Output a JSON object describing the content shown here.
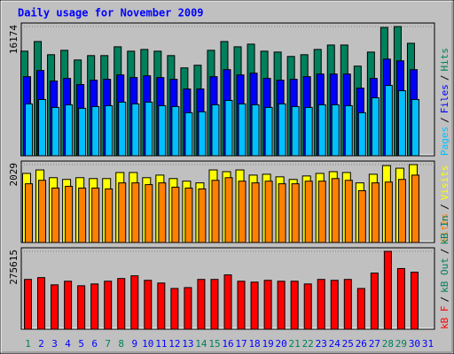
{
  "chart_data": [
    {
      "type": "bar",
      "title": "Daily usage for November 2009",
      "separator": "/",
      "ylim": [
        0,
        16174
      ],
      "yticks": [
        16174
      ],
      "series": [
        {
          "name": "Hits",
          "color": "#00805c",
          "values": [
            13090,
            14300,
            12650,
            13200,
            11990,
            12540,
            12540,
            13640,
            13090,
            13310,
            13090,
            12540,
            11000,
            11330,
            13200,
            14300,
            13640,
            13970,
            13090,
            12980,
            12430,
            12650,
            13310,
            13860,
            13860,
            11220,
            12980,
            16060,
            16174,
            14080,
            null
          ]
        },
        {
          "name": "Files",
          "color": "#0000ff",
          "values": [
            9900,
            10670,
            9350,
            9680,
            8910,
            9460,
            9570,
            10120,
            9790,
            10010,
            9790,
            9570,
            8360,
            8360,
            9900,
            10780,
            10120,
            10340,
            9680,
            9460,
            9570,
            9900,
            10230,
            10230,
            10230,
            8470,
            9680,
            12100,
            11880,
            10780,
            null
          ]
        },
        {
          "name": "Pages",
          "color": "#00c0ff",
          "values": [
            6490,
            7040,
            6050,
            6380,
            5940,
            6160,
            6270,
            6710,
            6490,
            6710,
            6270,
            6160,
            5390,
            5500,
            6380,
            6930,
            6490,
            6380,
            6050,
            6490,
            6160,
            6050,
            6380,
            6380,
            6270,
            5390,
            7260,
            8800,
            8140,
            7040,
            null
          ]
        }
      ]
    },
    {
      "type": "bar",
      "ylim": [
        0,
        2029
      ],
      "yticks": [
        2029
      ],
      "series": [
        {
          "name": "Visits",
          "color": "#ffff00",
          "values": [
            1800,
            1890,
            1688,
            1643,
            1688,
            1665,
            1665,
            1823,
            1823,
            1688,
            1755,
            1665,
            1598,
            1553,
            1890,
            1845,
            1890,
            1755,
            1778,
            1710,
            1643,
            1733,
            1800,
            1845,
            1823,
            1553,
            1778,
            2003,
            1935,
            2029,
            null
          ]
        },
        {
          "name": "Sites",
          "color": "#ff8000",
          "values": [
            1530,
            1620,
            1418,
            1463,
            1418,
            1418,
            1395,
            1553,
            1553,
            1508,
            1553,
            1440,
            1418,
            1395,
            1620,
            1688,
            1598,
            1553,
            1598,
            1530,
            1530,
            1598,
            1598,
            1665,
            1620,
            1350,
            1553,
            1575,
            1643,
            1755,
            null
          ]
        }
      ]
    },
    {
      "type": "bar",
      "ylim": [
        0,
        275615
      ],
      "yticks": [
        275615
      ],
      "categories": [
        "1",
        "2",
        "3",
        "4",
        "5",
        "6",
        "7",
        "8",
        "9",
        "10",
        "11",
        "12",
        "13",
        "14",
        "15",
        "16",
        "17",
        "18",
        "19",
        "20",
        "21",
        "22",
        "23",
        "24",
        "25",
        "26",
        "27",
        "28",
        "29",
        "30",
        "31"
      ],
      "highlight_indices": [
        0,
        6,
        7,
        13,
        14,
        20,
        21,
        27,
        28
      ],
      "highlight_color": "#00805c",
      "series": [
        {
          "name": "kB F",
          "color": "#ff0000",
          "values": [
            176275,
            182685,
            157045,
            169865,
            153840,
            160250,
            169865,
            179480,
            189095,
            173070,
            163455,
            144225,
            147430,
            176275,
            176275,
            192300,
            169865,
            166660,
            173070,
            169865,
            169865,
            160250,
            176275,
            173070,
            176275,
            144225,
            198710,
            275615,
            214735,
            201915,
            null
          ]
        }
      ],
      "extra_legend": [
        {
          "name": "kB Out",
          "color": "#00805c"
        },
        {
          "name": "kB In",
          "color": "#00805c"
        }
      ]
    }
  ]
}
